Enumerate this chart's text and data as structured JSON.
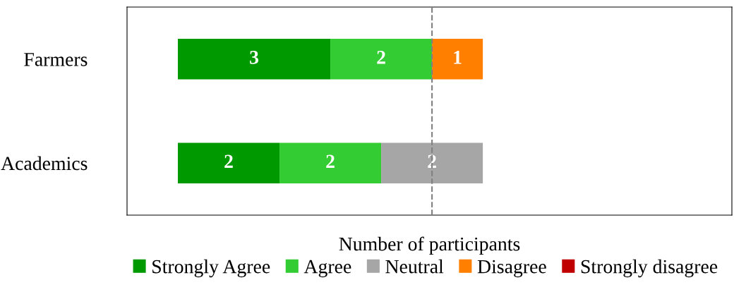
{
  "chart_data": {
    "type": "bar",
    "orientation": "horizontal",
    "stacked": true,
    "categories": [
      "Farmers",
      "Academics"
    ],
    "xlabel": "Number of participants",
    "xlim": [
      -1,
      10.9
    ],
    "tick_labels": "y",
    "grid": false,
    "legend": "bottom",
    "series": [
      {
        "name": "Strongly Agree",
        "color": "#009900",
        "values": [
          3,
          2
        ],
        "value_labels": [
          "3",
          "2"
        ]
      },
      {
        "name": "Agree",
        "color": "#33cc33",
        "values": [
          2,
          2
        ],
        "value_labels": [
          "2",
          "2"
        ]
      },
      {
        "name": "Neutral",
        "color": "#a6a6a6",
        "values": [
          0,
          2
        ],
        "value_labels": [
          null,
          "2"
        ]
      },
      {
        "name": "Disagree",
        "color": "#ff8000",
        "values": [
          1,
          0
        ],
        "value_labels": [
          "1",
          null
        ]
      },
      {
        "name": "Strongly disagree",
        "color": "#c00000",
        "values": [
          0,
          0
        ],
        "value_labels": [
          null,
          null
        ]
      }
    ],
    "ref_lines": [
      {
        "axis": "x",
        "value": 5,
        "color": "#808080",
        "line_style": "dashed"
      }
    ]
  }
}
